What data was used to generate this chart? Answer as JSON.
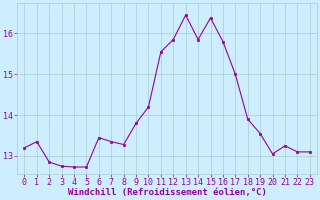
{
  "x": [
    0,
    1,
    2,
    3,
    4,
    5,
    6,
    7,
    8,
    9,
    10,
    11,
    12,
    13,
    14,
    15,
    16,
    17,
    18,
    19,
    20,
    21,
    22,
    23
  ],
  "y": [
    13.2,
    13.35,
    12.85,
    12.75,
    12.73,
    12.73,
    13.45,
    13.35,
    13.28,
    13.8,
    14.2,
    15.55,
    15.85,
    16.45,
    15.85,
    16.38,
    15.8,
    15.0,
    13.9,
    13.55,
    13.05,
    13.25,
    13.1,
    13.1
  ],
  "line_color": "#990099",
  "marker_color": "#990099",
  "bg_color": "#cceeff",
  "grid_color": "#aacccc",
  "xlabel": "Windchill (Refroidissement éolien,°C)",
  "ylim_min": 12.55,
  "ylim_max": 16.75,
  "yticks": [
    13,
    14,
    15,
    16
  ],
  "xticks": [
    0,
    1,
    2,
    3,
    4,
    5,
    6,
    7,
    8,
    9,
    10,
    11,
    12,
    13,
    14,
    15,
    16,
    17,
    18,
    19,
    20,
    21,
    22,
    23
  ],
  "font_size": 6.0,
  "xlabel_fontsize": 6.5,
  "linewidth": 0.8,
  "markersize": 1.8
}
